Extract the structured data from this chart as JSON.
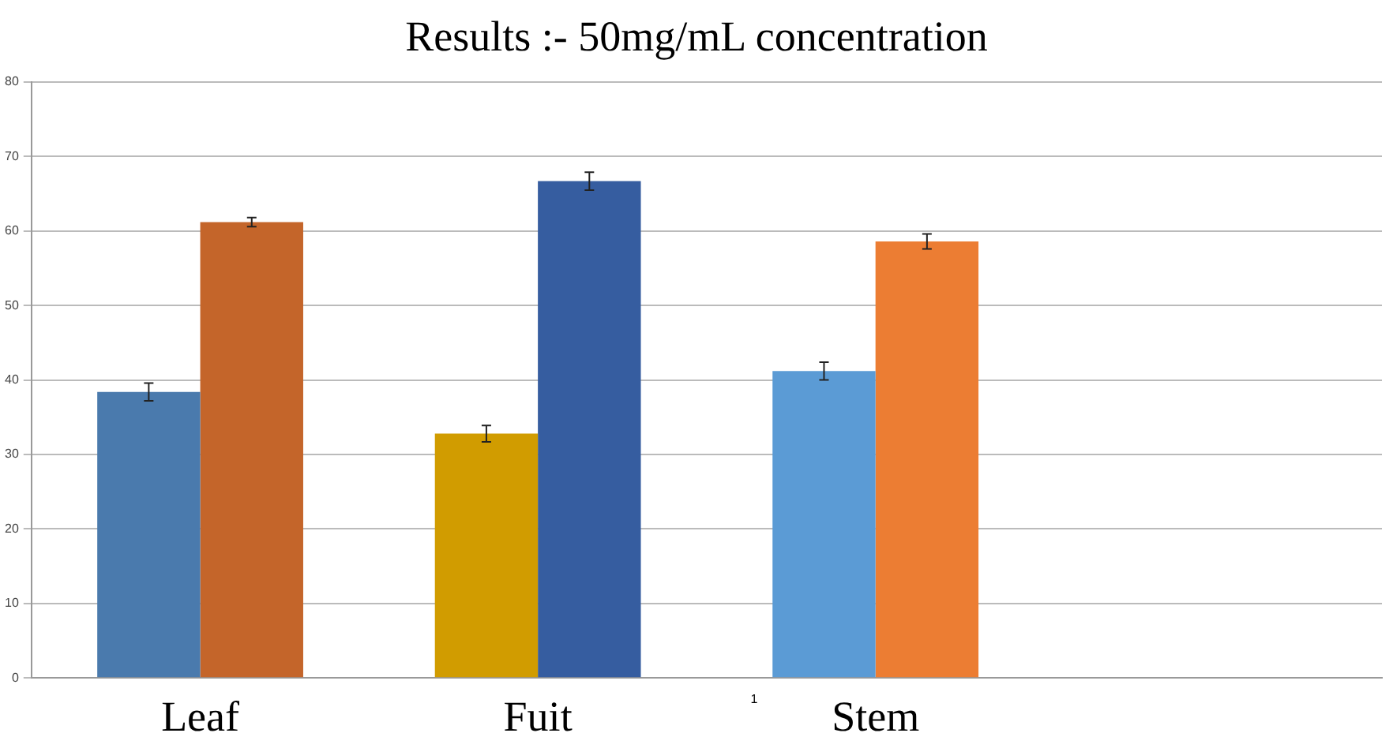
{
  "chart_data": {
    "type": "bar",
    "title": "Results :- 50mg/mL concentration",
    "categories": [
      "Leaf",
      "Fuit",
      "Stem",
      null
    ],
    "series": [
      {
        "colors": [
          "#4a7aad",
          "#d19c00",
          "#5b9bd5",
          null
        ],
        "values": [
          38.4,
          32.8,
          41.2,
          null
        ],
        "errors": [
          1.2,
          1.1,
          1.2,
          null
        ]
      },
      {
        "colors": [
          "#c4652a",
          "#365da0",
          "#ec7d33",
          null
        ],
        "values": [
          61.2,
          66.7,
          58.6,
          null
        ],
        "errors": [
          0.6,
          1.2,
          1.0,
          null
        ]
      }
    ],
    "ylim": [
      0,
      80
    ],
    "yticks": [
      0,
      10,
      20,
      30,
      40,
      50,
      60,
      70,
      80
    ],
    "grid": "y",
    "legend": false,
    "annotations": [
      "1"
    ]
  }
}
